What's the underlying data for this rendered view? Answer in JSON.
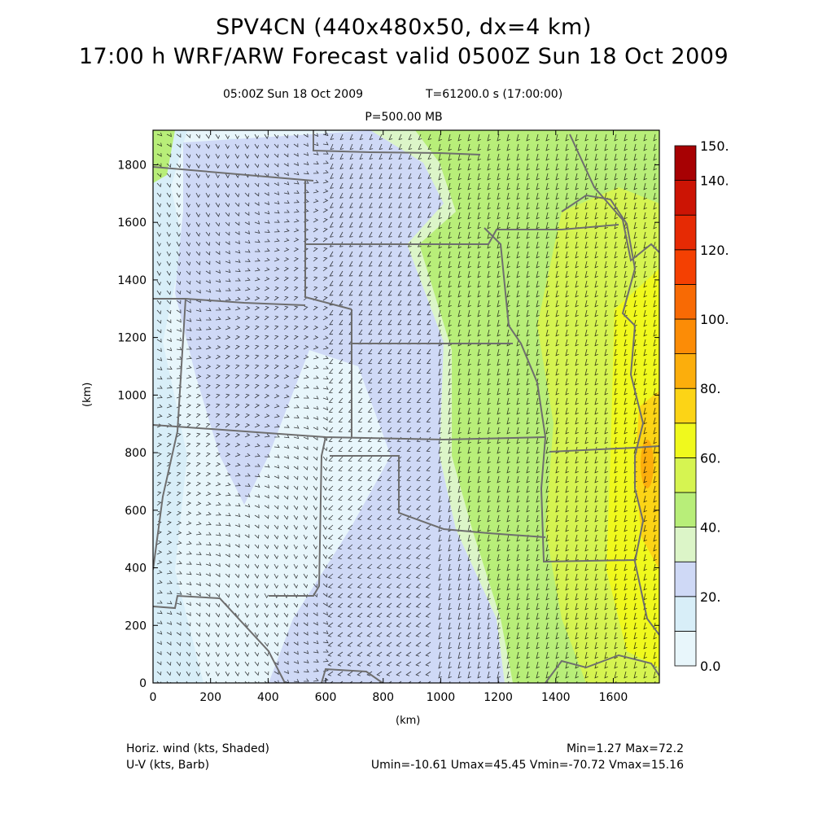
{
  "header": {
    "title_line1": "SPV4CN (440x480x50, dx=4 km)",
    "title_line2": "17:00 h WRF/ARW Forecast valid 0500Z Sun 18 Oct 2009",
    "valid_time": "05:00Z Sun 18 Oct 2009",
    "model_time": "T=61200.0 s (17:00:00)",
    "level": "P=500.00 MB"
  },
  "footer": {
    "shaded_label": "Horiz. wind (kts, Shaded)",
    "barb_label": "U-V (kts, Barb)",
    "min_max": "Min=1.27 Max=72.2",
    "uv_range": "Umin=-10.61 Umax=45.45 Vmin=-70.72 Vmax=15.16"
  },
  "map": {
    "x_label": "(km)",
    "y_label": "(km)",
    "x_range": [
      0,
      1760
    ],
    "y_range": [
      0,
      1920
    ],
    "x_ticks": [
      "0",
      "200",
      "400",
      "600",
      "800",
      "1000",
      "1200",
      "1400",
      "1600"
    ],
    "y_ticks": [
      "0",
      "200",
      "400",
      "600",
      "800",
      "1000",
      "1200",
      "1400",
      "1600",
      "1800"
    ],
    "border_color": "#6e6e6e",
    "barb_color": "#000000"
  },
  "colorbar": {
    "labels": [
      "0.0",
      "20.",
      "40.",
      "60.",
      "80.",
      "100.",
      "120.",
      "140.",
      "150."
    ],
    "levels": [
      0,
      10,
      20,
      30,
      40,
      50,
      60,
      70,
      80,
      90,
      100,
      110,
      120,
      130,
      140,
      150
    ],
    "colors": [
      "#e8f6fb",
      "#d8eef8",
      "#cfd9f6",
      "#dcf5c8",
      "#b8ee79",
      "#d6f451",
      "#f0f91d",
      "#fcd416",
      "#fcae0c",
      "#fc8c06",
      "#f86a04",
      "#f44002",
      "#e62a04",
      "#cc1404",
      "#a70103"
    ]
  }
}
